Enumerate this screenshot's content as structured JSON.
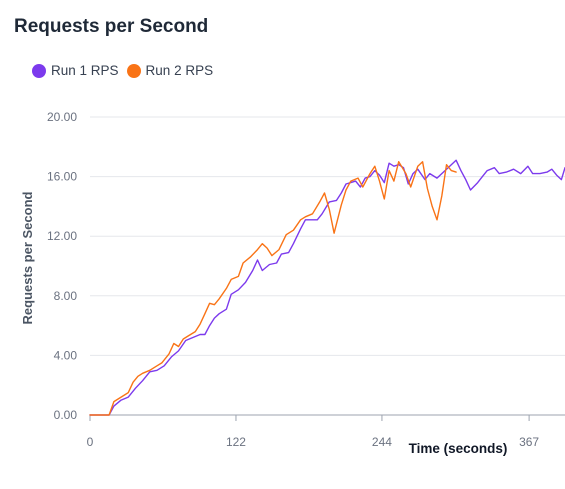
{
  "chart_data": {
    "type": "line",
    "title": "Requests per Second",
    "xlabel": "Time (seconds)",
    "ylabel": "Requests per Second",
    "xlim": [
      0,
      397
    ],
    "ylim": [
      0,
      20
    ],
    "x_ticks": [
      "0",
      "122",
      "244",
      "367"
    ],
    "y_ticks": [
      "0.00",
      "4.00",
      "8.00",
      "12.00",
      "16.00",
      "20.00"
    ],
    "grid": true,
    "legend": "top-left",
    "series": [
      {
        "name": "Run 1 RPS",
        "color": "#7c3aed",
        "points": [
          [
            0,
            0
          ],
          [
            10,
            0
          ],
          [
            16,
            0
          ],
          [
            20,
            0.6
          ],
          [
            26,
            1
          ],
          [
            32,
            1.2
          ],
          [
            38,
            1.8
          ],
          [
            44,
            2.3
          ],
          [
            50,
            2.9
          ],
          [
            56,
            3
          ],
          [
            62,
            3.3
          ],
          [
            68,
            3.9
          ],
          [
            74,
            4.3
          ],
          [
            80,
            5
          ],
          [
            86,
            5.2
          ],
          [
            92,
            5.4
          ],
          [
            96,
            5.4
          ],
          [
            100,
            6
          ],
          [
            104,
            6.5
          ],
          [
            108,
            6.8
          ],
          [
            114,
            7.1
          ],
          [
            118,
            8.1
          ],
          [
            124,
            8.4
          ],
          [
            130,
            8.9
          ],
          [
            136,
            9.7
          ],
          [
            140,
            10.4
          ],
          [
            144,
            9.7
          ],
          [
            150,
            10.1
          ],
          [
            156,
            10.2
          ],
          [
            160,
            10.8
          ],
          [
            166,
            10.9
          ],
          [
            170,
            11.5
          ],
          [
            176,
            12.5
          ],
          [
            180,
            13.1
          ],
          [
            184,
            13.1
          ],
          [
            190,
            13.1
          ],
          [
            194,
            13.5
          ],
          [
            200,
            14.3
          ],
          [
            206,
            14.4
          ],
          [
            210,
            14.9
          ],
          [
            214,
            15.5
          ],
          [
            218,
            15.6
          ],
          [
            222,
            15.7
          ],
          [
            226,
            15.3
          ],
          [
            230,
            15.9
          ],
          [
            234,
            16
          ],
          [
            238,
            16.4
          ],
          [
            242,
            16.1
          ],
          [
            246,
            15.6
          ],
          [
            250,
            16.9
          ],
          [
            254,
            16.7
          ],
          [
            258,
            16.8
          ],
          [
            262,
            16.6
          ],
          [
            266,
            15.5
          ],
          [
            270,
            16.2
          ],
          [
            274,
            16.5
          ],
          [
            280,
            15.8
          ],
          [
            284,
            16.2
          ],
          [
            290,
            15.9
          ],
          [
            294,
            16.2
          ],
          [
            298,
            16.5
          ],
          [
            302,
            16.8
          ],
          [
            306,
            17.1
          ],
          [
            310,
            16.4
          ],
          [
            314,
            15.8
          ],
          [
            318,
            15.1
          ],
          [
            324,
            15.6
          ],
          [
            328,
            16
          ],
          [
            332,
            16.4
          ],
          [
            338,
            16.6
          ],
          [
            342,
            16.2
          ],
          [
            348,
            16.3
          ],
          [
            354,
            16.5
          ],
          [
            360,
            16.2
          ],
          [
            366,
            16.7
          ],
          [
            370,
            16.2
          ],
          [
            376,
            16.2
          ],
          [
            382,
            16.3
          ],
          [
            386,
            16.5
          ],
          [
            390,
            16.1
          ],
          [
            394,
            15.8
          ],
          [
            397,
            16.6
          ]
        ]
      },
      {
        "name": "Run 2 RPS",
        "color": "#f97316",
        "points": [
          [
            0,
            0
          ],
          [
            10,
            0
          ],
          [
            16,
            0
          ],
          [
            20,
            0.9
          ],
          [
            26,
            1.2
          ],
          [
            32,
            1.5
          ],
          [
            36,
            2.2
          ],
          [
            40,
            2.6
          ],
          [
            44,
            2.8
          ],
          [
            50,
            3
          ],
          [
            56,
            3.3
          ],
          [
            60,
            3.5
          ],
          [
            66,
            4.1
          ],
          [
            70,
            4.8
          ],
          [
            74,
            4.6
          ],
          [
            78,
            5.1
          ],
          [
            82,
            5.3
          ],
          [
            88,
            5.6
          ],
          [
            92,
            6.1
          ],
          [
            96,
            6.8
          ],
          [
            100,
            7.5
          ],
          [
            104,
            7.4
          ],
          [
            108,
            7.8
          ],
          [
            114,
            8.5
          ],
          [
            118,
            9.1
          ],
          [
            124,
            9.3
          ],
          [
            128,
            10.2
          ],
          [
            134,
            10.6
          ],
          [
            140,
            11.1
          ],
          [
            144,
            11.5
          ],
          [
            148,
            11.2
          ],
          [
            152,
            10.7
          ],
          [
            158,
            11.1
          ],
          [
            164,
            12.1
          ],
          [
            170,
            12.4
          ],
          [
            176,
            13.1
          ],
          [
            180,
            13.3
          ],
          [
            186,
            13.5
          ],
          [
            192,
            14.3
          ],
          [
            196,
            14.9
          ],
          [
            200,
            13.8
          ],
          [
            204,
            12.2
          ],
          [
            210,
            14.1
          ],
          [
            214,
            15.1
          ],
          [
            218,
            15.7
          ],
          [
            224,
            15.9
          ],
          [
            228,
            15.3
          ],
          [
            234,
            16.2
          ],
          [
            238,
            16.7
          ],
          [
            242,
            15.7
          ],
          [
            246,
            14.5
          ],
          [
            250,
            16.4
          ],
          [
            254,
            15.7
          ],
          [
            258,
            17
          ],
          [
            264,
            16.2
          ],
          [
            268,
            15.3
          ],
          [
            274,
            16.7
          ],
          [
            278,
            17
          ],
          [
            282,
            15.2
          ],
          [
            286,
            14
          ],
          [
            290,
            13.1
          ],
          [
            294,
            14.7
          ],
          [
            298,
            16.8
          ],
          [
            302,
            16.4
          ],
          [
            306,
            16.3
          ]
        ]
      }
    ]
  }
}
